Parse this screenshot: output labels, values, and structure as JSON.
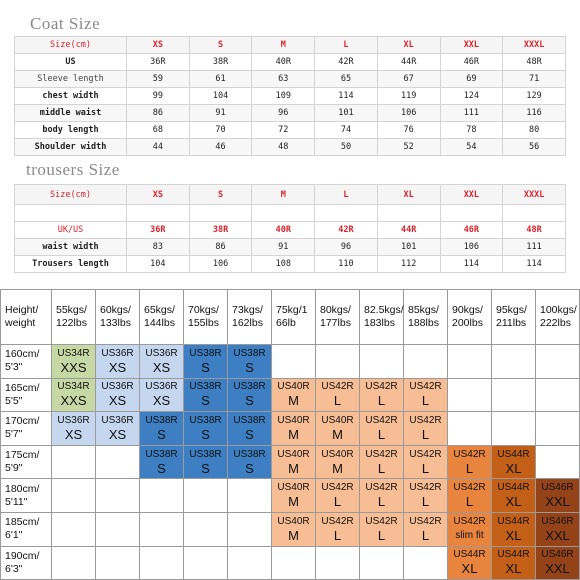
{
  "coat": {
    "title": "Coat Size",
    "header": [
      "Size(cm)",
      "XS",
      "S",
      "M",
      "L",
      "XL",
      "XXL",
      "XXXL"
    ],
    "rows": [
      {
        "label": "US",
        "values": [
          "36R",
          "38R",
          "40R",
          "42R",
          "44R",
          "46R",
          "48R"
        ]
      },
      {
        "label": "Sleeve length",
        "values": [
          "59",
          "61",
          "63",
          "65",
          "67",
          "69",
          "71"
        ]
      },
      {
        "label": "chest width",
        "values": [
          "99",
          "104",
          "109",
          "114",
          "119",
          "124",
          "129"
        ]
      },
      {
        "label": "middle waist",
        "values": [
          "86",
          "91",
          "96",
          "101",
          "106",
          "111",
          "116"
        ]
      },
      {
        "label": "body length",
        "values": [
          "68",
          "70",
          "72",
          "74",
          "76",
          "78",
          "80"
        ]
      },
      {
        "label": "Shoulder width",
        "values": [
          "44",
          "46",
          "48",
          "50",
          "52",
          "54",
          "56"
        ]
      }
    ]
  },
  "trousers": {
    "title": "trousers Size",
    "header": [
      "Size(cm)",
      "XS",
      "S",
      "M",
      "L",
      "XL",
      "XXL",
      "XXXL"
    ],
    "rows": [
      {
        "label": "UK/US",
        "values": [
          "36R",
          "38R",
          "40R",
          "42R",
          "44R",
          "46R",
          "48R"
        ]
      },
      {
        "label": "waist width",
        "values": [
          "83",
          "86",
          "91",
          "96",
          "101",
          "106",
          "111"
        ]
      },
      {
        "label": "Trousers length",
        "values": [
          "104",
          "106",
          "108",
          "110",
          "112",
          "114",
          "114"
        ]
      }
    ]
  },
  "chart": {
    "corner": [
      "Height/",
      "weight"
    ],
    "weights": [
      [
        "55kgs/",
        "122lbs"
      ],
      [
        "60kgs/",
        "133lbs"
      ],
      [
        "65kgs/",
        "144lbs"
      ],
      [
        "70kgs/",
        "155lbs"
      ],
      [
        "73kgs/",
        "162lbs"
      ],
      [
        "75kg/1",
        "66lb"
      ],
      [
        "80kgs/",
        "177lbs"
      ],
      [
        "82.5kgs/",
        "183lbs"
      ],
      [
        "85kgs/",
        "188lbs"
      ],
      [
        "90kgs/",
        "200lbs"
      ],
      [
        "95kgs/",
        "211lbs"
      ],
      [
        "100kgs/",
        "222lbs"
      ]
    ],
    "rows": [
      {
        "h": [
          "160cm/",
          "5'3\""
        ],
        "cells": [
          {
            "c": "US34R",
            "s": "XXS",
            "color": "#c6d9a5"
          },
          {
            "c": "US36R",
            "s": "XS",
            "color": "#c5d7ef"
          },
          {
            "c": "US36R",
            "s": "XS",
            "color": "#c5d7ef"
          },
          {
            "c": "US38R",
            "s": "S",
            "color": "#3d7fc2"
          },
          {
            "c": "US38R",
            "s": "S",
            "color": "#3d7fc2"
          },
          {},
          {},
          {},
          {},
          {},
          {},
          {}
        ]
      },
      {
        "h": [
          "165cm/",
          "5'5\""
        ],
        "cells": [
          {
            "c": "US34R",
            "s": "XXS",
            "color": "#c6d9a5"
          },
          {
            "c": "US36R",
            "s": "XS",
            "color": "#c5d7ef"
          },
          {
            "c": "US36R",
            "s": "XS",
            "color": "#c5d7ef"
          },
          {
            "c": "US38R",
            "s": "S",
            "color": "#3d7fc2"
          },
          {
            "c": "US38R",
            "s": "S",
            "color": "#3d7fc2"
          },
          {
            "c": "US40R",
            "s": "M",
            "color": "#f7bd95"
          },
          {
            "c": "US42R",
            "s": "L",
            "color": "#f7bd95"
          },
          {
            "c": "US42R",
            "s": "L",
            "color": "#f7bd95"
          },
          {
            "c": "US42R",
            "s": "L",
            "color": "#f7bd95"
          },
          {},
          {},
          {}
        ]
      },
      {
        "h": [
          "170cm/",
          "5'7\""
        ],
        "cells": [
          {
            "c": "US36R",
            "s": "XS",
            "color": "#c5d7ef"
          },
          {
            "c": "US36R",
            "s": "XS",
            "color": "#c5d7ef"
          },
          {
            "c": "US38R",
            "s": "S",
            "color": "#3d7fc2"
          },
          {
            "c": "US38R",
            "s": "S",
            "color": "#3d7fc2"
          },
          {
            "c": "US38R",
            "s": "S",
            "color": "#3d7fc2"
          },
          {
            "c": "US40R",
            "s": "M",
            "color": "#f7bd95"
          },
          {
            "c": "US40R",
            "s": "M",
            "color": "#f7bd95"
          },
          {
            "c": "US42R",
            "s": "L",
            "color": "#f7bd95"
          },
          {
            "c": "US42R",
            "s": "L",
            "color": "#f7bd95"
          },
          {},
          {},
          {}
        ]
      },
      {
        "h": [
          "175cm/",
          "5'9\""
        ],
        "cells": [
          {},
          {},
          {
            "c": "US38R",
            "s": "S",
            "color": "#3d7fc2"
          },
          {
            "c": "US38R",
            "s": "S",
            "color": "#3d7fc2"
          },
          {
            "c": "US38R",
            "s": "S",
            "color": "#3d7fc2"
          },
          {
            "c": "US40R",
            "s": "M",
            "color": "#f7bd95"
          },
          {
            "c": "US40R",
            "s": "M",
            "color": "#f7bd95"
          },
          {
            "c": "US42R",
            "s": "L",
            "color": "#f7bd95"
          },
          {
            "c": "US42R",
            "s": "L",
            "color": "#f7bd95"
          },
          {
            "c": "US42R",
            "s": "L",
            "color": "#e8843e"
          },
          {
            "c": "US44R",
            "s": "XL",
            "color": "#c45f18"
          },
          {}
        ]
      },
      {
        "h": [
          "180cm/",
          "5'11\""
        ],
        "cells": [
          {},
          {},
          {},
          {},
          {},
          {
            "c": "US40R",
            "s": "M",
            "color": "#f7bd95"
          },
          {
            "c": "US42R",
            "s": "L",
            "color": "#f7bd95"
          },
          {
            "c": "US42R",
            "s": "L",
            "color": "#f7bd95"
          },
          {
            "c": "US42R",
            "s": "L",
            "color": "#f7bd95"
          },
          {
            "c": "US42R",
            "s": "L",
            "color": "#e8843e"
          },
          {
            "c": "US44R",
            "s": "XL",
            "color": "#c45f18"
          },
          {
            "c": "US46R",
            "s": "XXL",
            "color": "#944318"
          }
        ]
      },
      {
        "h": [
          "185cm/",
          "6'1\""
        ],
        "cells": [
          {},
          {},
          {},
          {},
          {},
          {
            "c": "US40R",
            "s": "M",
            "color": "#f7bd95"
          },
          {
            "c": "US42R",
            "s": "L",
            "color": "#f7bd95"
          },
          {
            "c": "US42R",
            "s": "L",
            "color": "#f7bd95"
          },
          {
            "c": "US42R",
            "s": "L",
            "color": "#f7bd95"
          },
          {
            "c": "US42R",
            "s": "slim fit",
            "color": "#e8843e"
          },
          {
            "c": "US44R",
            "s": "XL",
            "color": "#c45f18"
          },
          {
            "c": "US46R",
            "s": "XXL",
            "color": "#944318"
          }
        ]
      },
      {
        "h": [
          "190cm/",
          "6'3\""
        ],
        "cells": [
          {},
          {},
          {},
          {},
          {},
          {},
          {},
          {},
          {},
          {
            "c": "US44R",
            "s": "XL",
            "color": "#e8843e"
          },
          {
            "c": "US44R",
            "s": "XL",
            "color": "#c45f18"
          },
          {
            "c": "US46R",
            "s": "XXL",
            "color": "#944318"
          }
        ]
      }
    ]
  }
}
